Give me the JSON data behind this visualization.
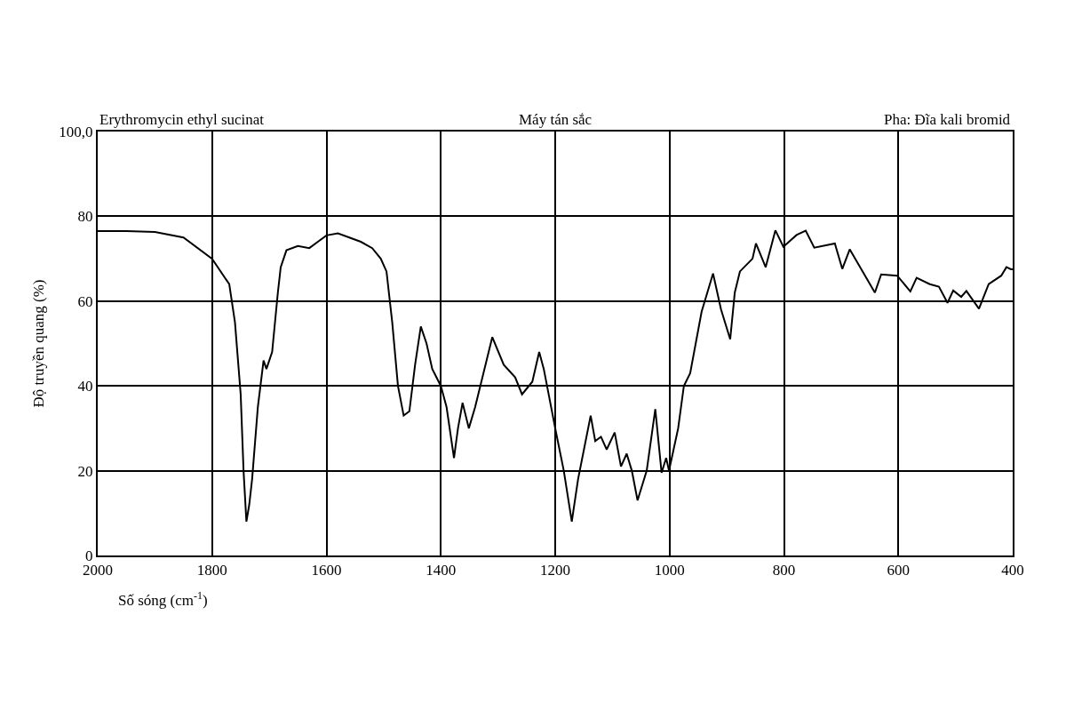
{
  "chart_data": {
    "type": "line",
    "xlabel": "Số sóng (cm$^{-1}$)",
    "ylabel": "Độ truyền quang (%)",
    "annotations": [
      "Erythromycin ethyl sucinat",
      "Máy tán sắc",
      "Pha: Đĩa kali bromid"
    ],
    "xlim": [
      2000,
      400
    ],
    "xticks": [
      2000,
      1800,
      1600,
      1400,
      1200,
      1000,
      800,
      600,
      400
    ],
    "ylim": [
      0,
      100
    ],
    "yticks": [
      0,
      20,
      40,
      60,
      80,
      {
        "value": 100,
        "label": "100,0"
      }
    ],
    "grid": true,
    "marker": "none",
    "line_style": "solid",
    "series": [
      {
        "color": "#000000",
        "x": [
          2000,
          1950,
          1900,
          1850,
          1800,
          1770,
          1760,
          1750,
          1745,
          1740,
          1735,
          1730,
          1720,
          1710,
          1705,
          1695,
          1685,
          1680,
          1670,
          1650,
          1630,
          1615,
          1600,
          1580,
          1560,
          1540,
          1520,
          1505,
          1495,
          1485,
          1475,
          1465,
          1455,
          1445,
          1435,
          1425,
          1415,
          1400,
          1390,
          1377,
          1370,
          1362,
          1351,
          1340,
          1320,
          1310,
          1290,
          1270,
          1258,
          1240,
          1228,
          1220,
          1200,
          1185,
          1171,
          1160,
          1138,
          1130,
          1120,
          1110,
          1096,
          1085,
          1075,
          1066,
          1056,
          1040,
          1025,
          1014,
          1006,
          1001,
          985,
          975,
          964,
          944,
          924,
          910,
          894,
          886,
          877,
          855,
          849,
          832,
          815,
          801,
          778,
          762,
          747,
          711,
          698,
          685,
          641,
          630,
          602,
          579,
          568,
          545,
          529,
          514,
          504,
          490,
          481,
          459,
          442,
          420,
          411,
          403,
          400
        ],
        "values": [
          76.5,
          76.5,
          76.3,
          75,
          70,
          64,
          55,
          38,
          20,
          8,
          12,
          18,
          35,
          46,
          44,
          48,
          62,
          68,
          72,
          73,
          72.5,
          74,
          75.5,
          76,
          75,
          74,
          72.5,
          70,
          67,
          55,
          40,
          33,
          34,
          45,
          54,
          50,
          44,
          40,
          35,
          23,
          30,
          36,
          30,
          35,
          46,
          51.5,
          45,
          42,
          38,
          41,
          48,
          44,
          30,
          20,
          8,
          18,
          33,
          27,
          28,
          25,
          29,
          21,
          24,
          20,
          13,
          20,
          34.5,
          19.5,
          23,
          20,
          30,
          40,
          43,
          57.5,
          66.5,
          58,
          51,
          62,
          67,
          70,
          73.6,
          68,
          76.7,
          72.8,
          75.6,
          76.6,
          72.6,
          73.6,
          67.6,
          72.2,
          62,
          66.3,
          66,
          62.3,
          65.5,
          64,
          63.4,
          59.6,
          62.5,
          61,
          62.4,
          58.2,
          64,
          66,
          68,
          67.5,
          67.5
        ]
      }
    ]
  }
}
